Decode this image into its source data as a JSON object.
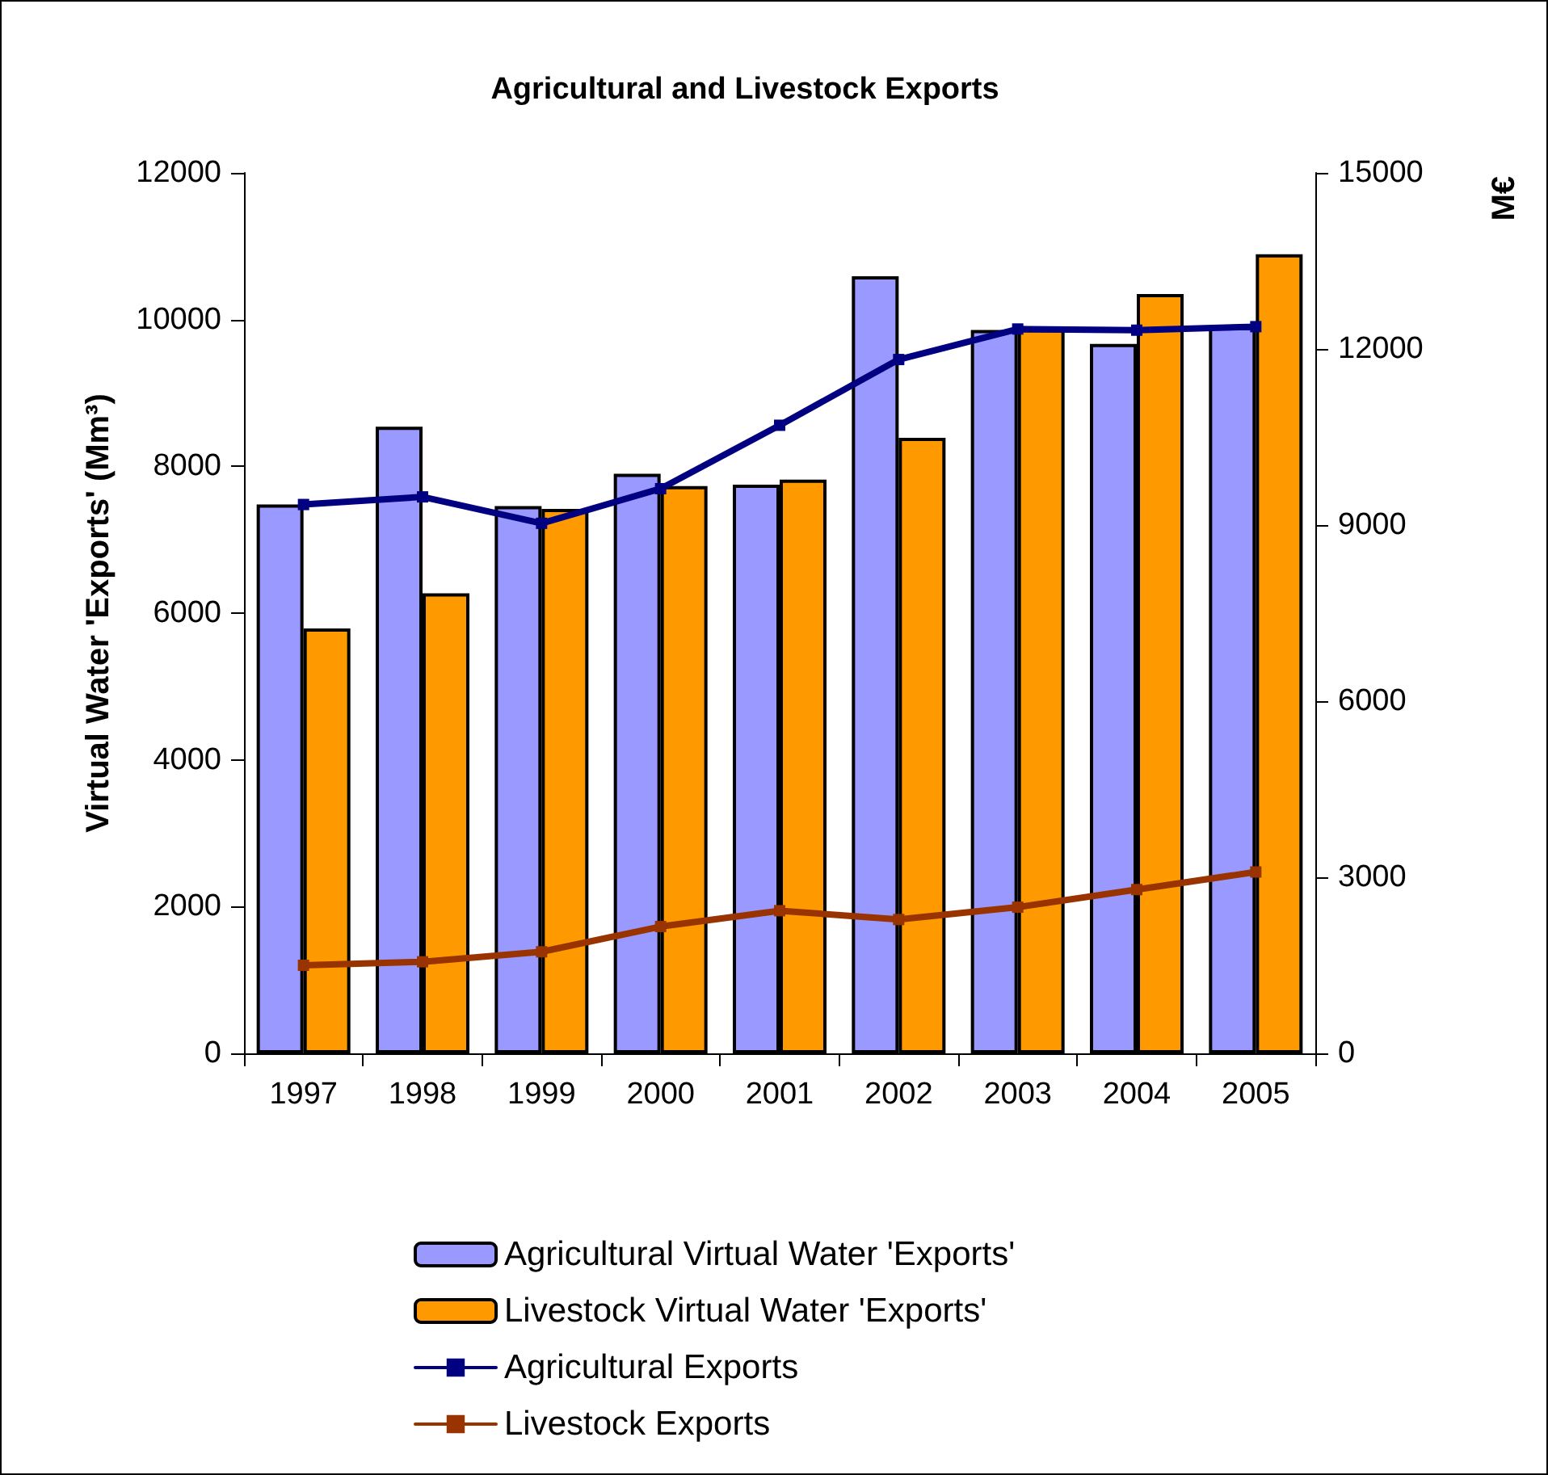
{
  "chart_data": {
    "type": "bar",
    "title": "Agricultural and Livestock Exports",
    "ylabel": "Virtual Water 'Exports' (Mm³)",
    "y2label": "M€",
    "categories": [
      "1997",
      "1998",
      "1999",
      "2000",
      "2001",
      "2002",
      "2003",
      "2004",
      "2005"
    ],
    "series": [
      {
        "name": "Agricultural Virtual Water 'Exports'",
        "color": "#9999ff",
        "values": [
          7480,
          8540,
          7460,
          7900,
          7750,
          10590,
          9860,
          9670,
          9900
        ]
      },
      {
        "name": "Livestock Virtual Water 'Exports'",
        "color": "#ff9900",
        "values": [
          5790,
          6270,
          7420,
          7730,
          7820,
          8390,
          9870,
          10350,
          10890
        ]
      },
      {
        "name": "Agricultural Exports",
        "type": "line",
        "axis": "y2",
        "color": "#000080",
        "values": [
          9350,
          9480,
          9030,
          9620,
          10700,
          11820,
          12340,
          12320,
          12380
        ]
      },
      {
        "name": "Livestock Exports",
        "type": "line",
        "axis": "y2",
        "color": "#993300",
        "values": [
          1500,
          1560,
          1730,
          2160,
          2430,
          2280,
          2490,
          2790,
          3090
        ]
      }
    ],
    "ylim": [
      0,
      12000
    ],
    "yticks": [
      0,
      2000,
      4000,
      6000,
      8000,
      10000,
      12000
    ],
    "y2lim": [
      0,
      15000
    ],
    "y2ticks": [
      0,
      3000,
      6000,
      9000,
      12000,
      15000
    ],
    "grid": false,
    "legend": "bottom",
    "marker": "square",
    "line_style": "solid"
  }
}
